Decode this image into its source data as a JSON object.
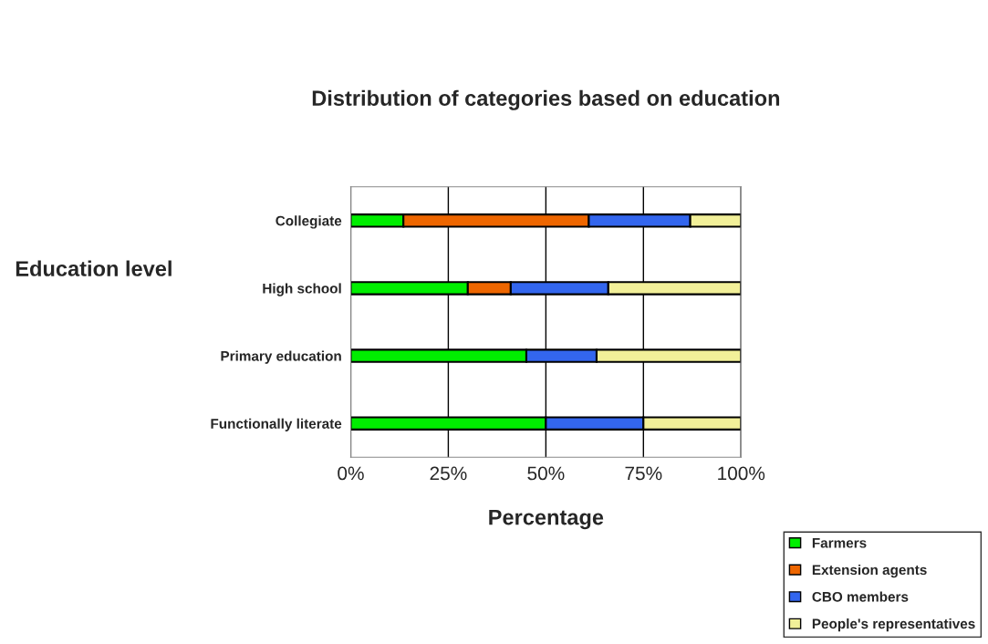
{
  "chart_data": {
    "type": "bar",
    "orientation": "horizontal",
    "stacked": true,
    "title": "Distribution of categories based on education",
    "xlabel": "Percentage",
    "ylabel": "Education level",
    "categories": [
      "Collegiate",
      "High school",
      "Primary education",
      "Functionally literate"
    ],
    "series": [
      {
        "name": "Farmers",
        "color": "#00ee00",
        "values": [
          13.5,
          30,
          45,
          50
        ]
      },
      {
        "name": "Extension agents",
        "color": "#ee6600",
        "values": [
          47.5,
          11,
          null,
          null
        ]
      },
      {
        "name": "CBO members",
        "color": "#3366ee",
        "values": [
          26,
          25,
          18,
          25
        ]
      },
      {
        "name": "People's representatives",
        "color": "#f2f099",
        "values": [
          13,
          34,
          37,
          25
        ]
      }
    ],
    "xlim": [
      0,
      100
    ],
    "xticks": [
      {
        "value": 0,
        "label": "0%"
      },
      {
        "value": 25,
        "label": "25%"
      },
      {
        "value": 50,
        "label": "50%"
      },
      {
        "value": 75,
        "label": "75%"
      },
      {
        "value": 100,
        "label": "100%"
      }
    ],
    "grid": "x",
    "legend": "bottom right"
  }
}
